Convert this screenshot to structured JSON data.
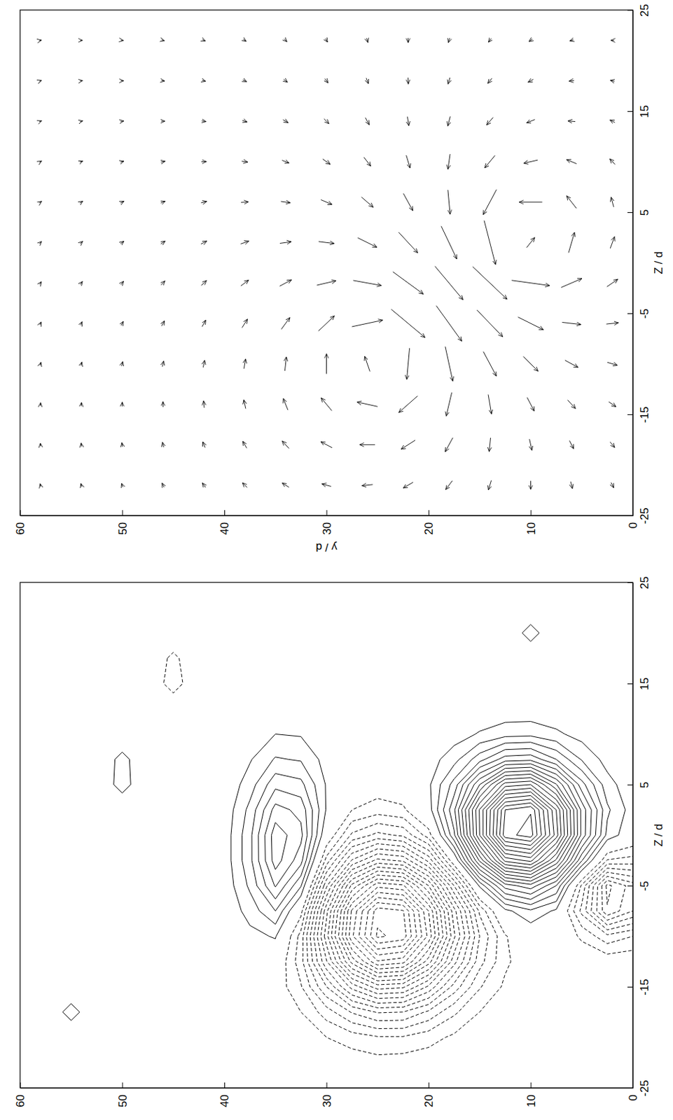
{
  "chart_data": [
    {
      "type": "quiver",
      "x_label": "Z / d",
      "y_label": "y / d",
      "xlim": [
        -25,
        25
      ],
      "ylim": [
        0,
        60
      ],
      "xticks": [
        -25,
        -15,
        -5,
        5,
        15,
        25
      ],
      "yticks": [
        0,
        10,
        20,
        30,
        40,
        50,
        60
      ],
      "x": [
        -22,
        -18,
        -14,
        -10,
        -6,
        -2,
        2,
        6,
        10,
        14,
        18,
        22
      ],
      "y": [
        2,
        6,
        10,
        14,
        18,
        22,
        26,
        30,
        34,
        38,
        42,
        46,
        50,
        54,
        58
      ],
      "u": [
        [
          -0.65,
          -0.68,
          -0.61,
          -0.36,
          0.16,
          0.92,
          1.44,
          1.21,
          0.69,
          0.32,
          0.11,
          0.01
        ],
        [
          -0.86,
          -0.99,
          -1.05,
          -0.88,
          -0.27,
          1.11,
          2.51,
          1.54,
          0.51,
          0.08,
          -0.08,
          -0.13
        ],
        [
          -1.06,
          -1.37,
          -1.68,
          -1.81,
          -1.56,
          -0.65,
          1.24,
          0,
          -0.39,
          -0.41,
          -0.36,
          -0.3
        ],
        [
          -1.18,
          -1.7,
          -2.4,
          -3.02,
          -3.31,
          -4.03,
          -5.44,
          -3.09,
          -1.54,
          -0.93,
          -0.63,
          -0.46
        ],
        [
          -1.09,
          -1.73,
          -2.9,
          -4.27,
          -4.38,
          -4.14,
          -4.06,
          -3.01,
          -1.87,
          -1.18,
          -0.79,
          -0.56
        ],
        [
          -0.71,
          -1.11,
          -2.04,
          -3.86,
          -3.49,
          -2.75,
          -2.55,
          -2.12,
          -1.58,
          -1.11,
          -0.79,
          -0.58
        ],
        [
          -0.14,
          0,
          0.56,
          1.87,
          0.81,
          -0.63,
          -1.17,
          -1.26,
          -1.1,
          -0.88,
          -0.69,
          -0.53
        ],
        [
          0.31,
          0.73,
          1.58,
          2.48,
          1.86,
          0.55,
          -0.24,
          -0.58,
          -0.65,
          -0.61,
          -0.53,
          -0.44
        ],
        [
          0.53,
          0.91,
          1.41,
          1.72,
          1.44,
          0.78,
          0.2,
          -0.16,
          -0.33,
          -0.37,
          -0.36,
          -0.33
        ],
        [
          0.59,
          0.84,
          1.09,
          1.2,
          1.06,
          0.71,
          0.35,
          0.06,
          -0.11,
          -0.2,
          -0.23,
          -0.23
        ],
        [
          0.56,
          0.71,
          0.85,
          0.88,
          0.8,
          0.6,
          0.37,
          0.17,
          0.02,
          -0.08,
          -0.12,
          -0.15
        ],
        [
          0.51,
          0.6,
          0.67,
          0.69,
          0.63,
          0.5,
          0.35,
          0.21,
          0.1,
          0.01,
          -0.05,
          -0.09
        ],
        [
          0.45,
          0.5,
          0.54,
          0.55,
          0.5,
          0.42,
          0.32,
          0.22,
          0.13,
          0.06,
          0,
          -0.04
        ],
        [
          0.39,
          0.42,
          0.45,
          0.44,
          0.41,
          0.36,
          0.29,
          0.22,
          0.14,
          0.08,
          0.04,
          0
        ],
        [
          0.34,
          0.36,
          0.38,
          0.37,
          0.35,
          0.31,
          0.26,
          0.2,
          0.16,
          0.11,
          0.09,
          0.05
        ]
      ],
      "v": [
        [
          -0.32,
          -0.56,
          -0.87,
          -1.22,
          -1.48,
          -1.32,
          -0.53,
          0.32,
          0.64,
          0.61,
          0.5,
          0.38
        ],
        [
          -0.21,
          -0.51,
          -0.97,
          -1.6,
          -2.3,
          -2.54,
          -0.72,
          1.2,
          1.23,
          0.9,
          0.62,
          0.44
        ],
        [
          0,
          -0.3,
          -0.87,
          -1.81,
          -3.11,
          -4.65,
          -0.99,
          2.82,
          1.71,
          1.02,
          0.64,
          0.43
        ],
        [
          0.36,
          0.17,
          -0.4,
          -1.59,
          -3.16,
          -4.21,
          -1.39,
          1.62,
          1.25,
          0.78,
          0.5,
          0.34
        ],
        [
          0.81,
          0.94,
          0.68,
          -0.92,
          -3.12,
          -3.43,
          -1.91,
          -0.27,
          0.26,
          0.3,
          0.23,
          0.17
        ],
        [
          1.21,
          1.73,
          2.29,
          0.34,
          -4.13,
          -3.72,
          -2.34,
          -1.16,
          -0.47,
          -0.17,
          -0.04,
          -0.01
        ],
        [
          1.32,
          1.88,
          2.51,
          0.64,
          -3.77,
          -3.44,
          -2.34,
          -1.44,
          -0.83,
          -0.47,
          -0.26,
          -0.16
        ],
        [
          1.13,
          1.38,
          1.31,
          -0.01,
          -1.94,
          -2.34,
          -1.91,
          -1.36,
          -0.92,
          -0.61,
          -0.4,
          -0.27
        ],
        [
          0.83,
          0.84,
          0.56,
          -0.18,
          -1.05,
          -1.45,
          -1.39,
          -1.14,
          -0.86,
          -0.63,
          -0.46,
          -0.33
        ],
        [
          0.56,
          0.48,
          0.23,
          -0.2,
          -0.66,
          -0.93,
          -0.99,
          -0.9,
          -0.74,
          -0.59,
          -0.46,
          -0.35
        ],
        [
          0.38,
          0.28,
          0.08,
          -0.18,
          -0.45,
          -0.64,
          -0.72,
          -0.7,
          -0.62,
          -0.52,
          -0.43,
          -0.35
        ],
        [
          0.25,
          0.15,
          0.02,
          -0.16,
          -0.33,
          -0.46,
          -0.53,
          -0.54,
          -0.51,
          -0.45,
          -0.39,
          -0.33
        ],
        [
          0.17,
          0.09,
          -0.01,
          -0.14,
          -0.26,
          -0.34,
          -0.41,
          -0.43,
          -0.41,
          -0.39,
          -0.35,
          -0.3
        ],
        [
          0.11,
          0.05,
          -0.03,
          -0.12,
          -0.2,
          -0.27,
          -0.32,
          -0.34,
          -0.35,
          -0.33,
          -0.3,
          -0.28
        ],
        [
          0.08,
          0.03,
          -0.03,
          -0.1,
          -0.17,
          -0.21,
          -0.26,
          -0.28,
          -0.28,
          -0.28,
          -0.27,
          -0.25
        ]
      ]
    },
    {
      "type": "contour",
      "x_label": "Z / d",
      "xlim": [
        -25,
        25
      ],
      "ylim": [
        0,
        60
      ],
      "xticks": [
        -25,
        -15,
        -5,
        5,
        15,
        25
      ],
      "yticks": [
        0,
        10,
        20,
        30,
        40,
        50,
        60
      ],
      "x": [
        -25,
        -22.5,
        -20,
        -17.5,
        -15,
        -12.5,
        -10,
        -7.5,
        -5,
        -2.5,
        0,
        2.5,
        5,
        7.5,
        10,
        12.5,
        15,
        17.5,
        20,
        22.5,
        25
      ],
      "y": [
        0,
        2.5,
        5,
        7.5,
        10,
        12.5,
        15,
        17.5,
        20,
        22.5,
        25,
        27.5,
        30,
        32.5,
        35,
        37.5,
        40,
        42.5,
        45,
        47.5,
        50,
        52.5,
        55,
        57.5,
        60
      ],
      "levels": [
        -21,
        -20,
        -19,
        -18,
        -17,
        -16,
        -15,
        -14,
        -13,
        -12,
        -11,
        -10,
        -9,
        -8,
        -7,
        -6,
        -5,
        -4,
        -3,
        -2,
        -1,
        1,
        2,
        3,
        4,
        5,
        6,
        7,
        8,
        9,
        10,
        11,
        12,
        13,
        14,
        15,
        16,
        17,
        18,
        19,
        20,
        21
      ],
      "z": [
        [
          0,
          0,
          0,
          0,
          0,
          -0.2,
          -2.0,
          -6.0,
          -6.5,
          -2.4,
          0.1,
          0.5,
          0.3,
          0.1,
          0,
          0,
          0,
          0,
          0,
          0,
          0
        ],
        [
          0,
          0,
          0,
          0,
          0,
          -0.3,
          -2.7,
          -7.9,
          -8.3,
          -2.1,
          1.7,
          2.2,
          1.4,
          0.6,
          0.2,
          0,
          0,
          0,
          0,
          0,
          0
        ],
        [
          0,
          0,
          0,
          0,
          0,
          -0.2,
          -1.2,
          -3.3,
          -2.2,
          3.1,
          6.7,
          6.7,
          4.4,
          1.9,
          0.6,
          0.1,
          0,
          0,
          0,
          0,
          0
        ],
        [
          0,
          0,
          0,
          0,
          0,
          0,
          0,
          0.8,
          4.0,
          9.8,
          14.5,
          14.0,
          9.1,
          4.0,
          1.2,
          0.2,
          0,
          0,
          0,
          0,
          0
        ],
        [
          0,
          0,
          0,
          -0.1,
          -0.2,
          -0.3,
          0.1,
          1.8,
          6.6,
          14.3,
          20.5,
          19.9,
          13.0,
          5.7,
          1.7,
          0.3,
          0,
          0,
          1.5,
          0,
          0
        ],
        [
          0,
          0,
          -0.1,
          -0.4,
          -0.8,
          -1.2,
          -1.1,
          0.7,
          5.5,
          13.3,
          19.6,
          19.0,
          12.5,
          5.5,
          1.6,
          0.3,
          0,
          0,
          0,
          0,
          0
        ],
        [
          0,
          -0.1,
          -0.4,
          -1.0,
          -2.1,
          -3.4,
          -4.0,
          -2.8,
          1.2,
          7.2,
          12.0,
          12.1,
          8.0,
          3.6,
          1.1,
          0.2,
          0,
          0,
          0,
          0,
          0
        ],
        [
          -0.1,
          -0.3,
          -0.8,
          -2.2,
          -4.6,
          -7.4,
          -9.2,
          -8.4,
          -5.0,
          -0.1,
          3.8,
          4.8,
          3.4,
          1.6,
          0.5,
          0.1,
          0,
          0,
          0,
          0,
          0
        ],
        [
          -0.1,
          -0.4,
          -1.4,
          -3.8,
          -7.8,
          -12.5,
          -15.7,
          -15.0,
          -11.0,
          -5.7,
          -1.5,
          0.5,
          0.8,
          0.5,
          0.1,
          0,
          0,
          0,
          0,
          0,
          0
        ],
        [
          -0.1,
          -0.5,
          -1.9,
          -5.0,
          -10.2,
          -16.4,
          -20.6,
          -20.1,
          -15.2,
          -8.8,
          -3.8,
          -1.2,
          -0.2,
          0,
          0,
          0,
          0,
          0,
          0,
          0,
          0
        ],
        [
          -0.1,
          -0.6,
          -1.9,
          -5.1,
          -10.5,
          -16.9,
          -21.2,
          -20.6,
          -15.7,
          -9.3,
          -4.3,
          -1.5,
          -0.4,
          0,
          0,
          0,
          0,
          0,
          0,
          0,
          0
        ],
        [
          -0.1,
          -0.4,
          -1.5,
          -4.1,
          -8.4,
          -13.4,
          -16.8,
          -16.2,
          -12.3,
          -7.1,
          -3.2,
          -1.0,
          -0.2,
          0.1,
          0,
          0,
          0,
          0,
          0,
          0,
          0
        ],
        [
          -0.1,
          -0.3,
          -1.0,
          -2.5,
          -5.0,
          -7.9,
          -9.6,
          -8.7,
          -5.8,
          -2.4,
          0,
          0.9,
          0.9,
          0.6,
          0.3,
          0.1,
          0,
          0,
          0,
          0,
          0
        ],
        [
          0,
          -0.1,
          -0.5,
          -1.0,
          -1.9,
          -2.6,
          -2.4,
          -0.6,
          2.1,
          4.4,
          5.3,
          4.7,
          3.3,
          1.9,
          0.9,
          0.4,
          0,
          0,
          0,
          0,
          0
        ],
        [
          0,
          0,
          -0.2,
          -0.2,
          -0.3,
          0.1,
          1.1,
          3.0,
          5.1,
          6.5,
          6.6,
          5.4,
          3.7,
          2.1,
          1.0,
          0.4,
          0,
          0,
          0,
          0,
          0
        ],
        [
          0,
          0,
          0,
          0.1,
          0,
          0.2,
          0.7,
          1.4,
          2.2,
          2.7,
          2.7,
          2.3,
          1.5,
          0.9,
          0.4,
          0.2,
          0,
          0,
          0,
          0,
          0
        ],
        [
          0,
          0,
          0,
          0,
          0,
          0,
          0.1,
          0.2,
          0.3,
          0.4,
          0.4,
          0.3,
          0.2,
          0.1,
          0,
          0,
          0,
          0,
          0,
          0,
          0
        ],
        [
          0,
          0,
          0,
          0,
          0,
          0,
          0,
          0,
          0,
          0,
          0,
          0,
          0,
          0,
          0,
          0,
          0,
          0,
          0,
          0,
          0
        ],
        [
          0,
          0,
          0,
          0,
          0,
          0,
          0,
          0,
          0,
          0,
          0,
          0,
          0,
          0,
          0,
          0,
          -1.6,
          -1.3,
          0,
          0,
          0
        ],
        [
          0,
          0,
          0,
          0,
          0,
          0,
          0,
          0,
          0,
          0,
          0,
          0,
          0,
          0,
          0,
          0,
          0,
          0,
          0,
          0,
          0
        ],
        [
          0,
          0,
          0,
          0,
          0,
          0,
          0,
          0,
          0,
          0,
          0,
          0,
          1.5,
          1.4,
          0,
          0,
          0,
          0,
          0,
          0,
          0
        ],
        [
          0,
          0,
          0,
          0,
          0,
          0,
          0,
          0,
          0,
          0,
          0,
          0,
          0,
          0,
          0,
          0,
          0,
          0,
          0,
          0,
          0
        ],
        [
          0,
          0,
          0,
          1.5,
          0,
          0,
          0,
          0,
          0,
          0,
          0,
          0,
          0,
          0,
          0,
          0,
          0,
          0,
          0,
          0,
          0
        ],
        [
          0,
          0,
          0,
          0,
          0,
          0,
          0,
          0,
          0,
          0,
          0,
          0,
          0,
          0,
          0,
          0,
          0,
          0,
          0,
          0,
          0
        ],
        [
          0,
          0,
          0,
          0,
          0,
          0,
          0,
          0,
          0,
          0,
          0,
          0,
          0,
          0,
          0,
          0,
          0,
          0,
          0,
          0,
          0
        ]
      ]
    }
  ]
}
